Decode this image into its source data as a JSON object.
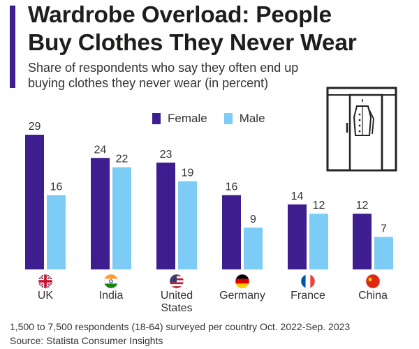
{
  "header": {
    "title_line1": "Wardrobe Overload: People",
    "title_line2": "Buy Clothes They Never Wear",
    "subtitle_line1": "Share of respondents who say they often end up",
    "subtitle_line2": "buying clothes they never wear (in percent)"
  },
  "legend": {
    "female": "Female",
    "male": "Male"
  },
  "colors": {
    "accent": "#3e1e8e",
    "female": "#3e1e8e",
    "male": "#7dccf5",
    "text": "#333333"
  },
  "icons": [
    "wardrobe-icon",
    "flag-uk-icon",
    "flag-india-icon",
    "flag-us-icon",
    "flag-germany-icon",
    "flag-france-icon",
    "flag-china-icon"
  ],
  "chart_data": {
    "type": "bar",
    "categories": [
      "UK",
      "India",
      "United States",
      "Germany",
      "France",
      "China"
    ],
    "category_label_lines": [
      [
        "UK"
      ],
      [
        "India"
      ],
      [
        "United",
        "States"
      ],
      [
        "Germany"
      ],
      [
        "France"
      ],
      [
        "China"
      ]
    ],
    "series": [
      {
        "name": "Female",
        "values": [
          29,
          24,
          23,
          16,
          14,
          12
        ]
      },
      {
        "name": "Male",
        "values": [
          16,
          22,
          19,
          9,
          12,
          7
        ]
      }
    ],
    "ylim": [
      0,
      29
    ],
    "grid": false,
    "legend_position": "top-center",
    "value_labels": true,
    "xlabel": "",
    "ylabel": ""
  },
  "footer": {
    "note": "1,500 to 7,500 respondents (18-64) surveyed per country Oct. 2022-Sep. 2023",
    "source": "Source: Statista Consumer Insights"
  }
}
